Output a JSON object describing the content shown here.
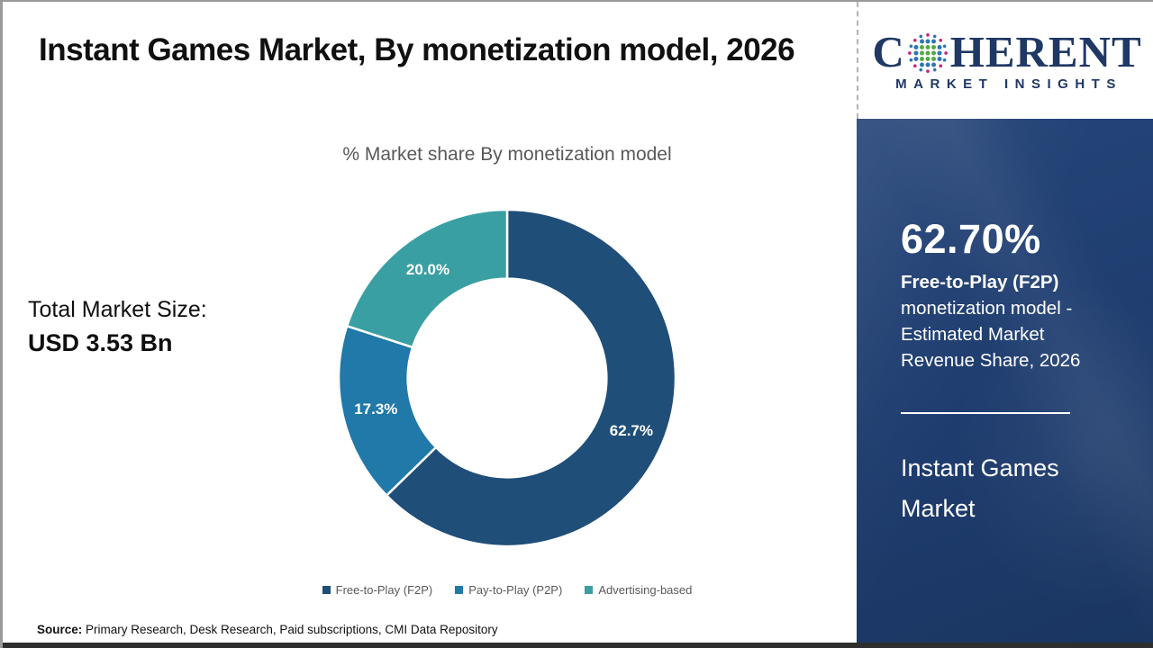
{
  "header": {
    "title": "Instant Games Market, By monetization model, 2026"
  },
  "stats": {
    "total_label": "Total Market Size:",
    "total_value": "USD 3.53 Bn"
  },
  "chart_data": {
    "type": "pie",
    "subtype": "donut",
    "title": "% Market share By monetization model",
    "categories": [
      "Free-to-Play (F2P)",
      "Pay-to-Play (P2P)",
      "Advertising-based"
    ],
    "values": [
      62.7,
      17.3,
      20.0
    ],
    "value_labels": [
      "62.7%",
      "17.3%",
      "20.0%"
    ],
    "colors": [
      "#1F4E79",
      "#2079A8",
      "#3A9FA3"
    ],
    "start_angle_deg": 0,
    "direction": "clockwise",
    "inner_radius_ratio": 0.59,
    "legend_position": "bottom",
    "label_text_color": "#FFFFFF"
  },
  "footer": {
    "source_label": "Source:",
    "source_text": " Primary Research, Desk Research, Paid subscriptions, CMI Data Repository"
  },
  "brand": {
    "name_part1": "C",
    "name_part2": "HERENT",
    "subname": "MARKET INSIGHTS",
    "navy": "#1F3864",
    "globe_colors": {
      "green": "#56A944",
      "blue": "#2E75B6",
      "magenta": "#C2267E"
    }
  },
  "highlight": {
    "stat": "62.70%",
    "label_bold": "Free-to-Play (F2P)",
    "description": "monetization model - Estimated Market Revenue Share, 2026",
    "market_name": "Instant Games Market",
    "panel_color": "#1E3C6E"
  }
}
